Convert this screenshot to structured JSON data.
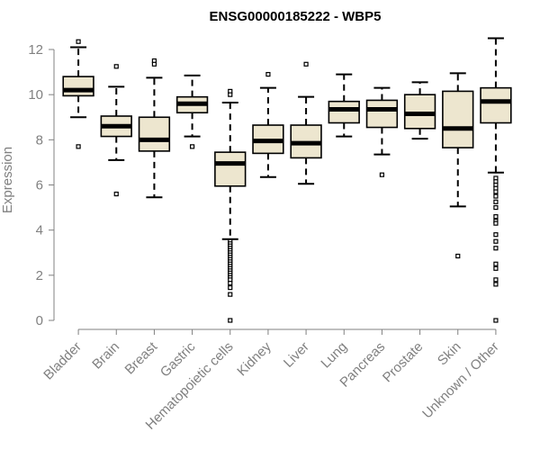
{
  "chart_data": {
    "type": "boxplot",
    "title": "ENSG00000185222 - WBP5",
    "xlabel": "",
    "ylabel": "Expression",
    "ylim": [
      0,
      12
    ],
    "yticks": [
      0,
      2,
      4,
      6,
      8,
      10,
      12
    ],
    "grid": false,
    "box_fill": "#ede6cf",
    "categories": [
      "Bladder",
      "Brain",
      "Breast",
      "Gastric",
      "Hematopoietic cells",
      "Kidney",
      "Liver",
      "Lung",
      "Pancreas",
      "Prostate",
      "Skin",
      "Unknown / Other"
    ],
    "boxes": [
      {
        "name": "Bladder",
        "whisker_low": 9.0,
        "q1": 9.95,
        "median": 10.2,
        "q3": 10.8,
        "whisker_high": 12.1,
        "outliers": [
          12.35,
          7.7
        ]
      },
      {
        "name": "Brain",
        "whisker_low": 7.1,
        "q1": 8.15,
        "median": 8.6,
        "q3": 9.05,
        "whisker_high": 10.35,
        "outliers": [
          11.25,
          5.6
        ]
      },
      {
        "name": "Breast",
        "whisker_low": 5.45,
        "q1": 7.5,
        "median": 8.0,
        "q3": 9.0,
        "whisker_high": 10.75,
        "outliers": [
          11.5,
          11.35
        ]
      },
      {
        "name": "Gastric",
        "whisker_low": 8.15,
        "q1": 9.2,
        "median": 9.6,
        "q3": 9.9,
        "whisker_high": 10.85,
        "outliers": [
          7.7
        ]
      },
      {
        "name": "Hematopoietic cells",
        "whisker_low": 3.6,
        "q1": 5.95,
        "median": 6.95,
        "q3": 7.45,
        "whisker_high": 9.65,
        "outliers": [
          10.15,
          10.0,
          3.5,
          3.4,
          3.3,
          3.2,
          3.1,
          3.0,
          2.9,
          2.8,
          2.7,
          2.6,
          2.5,
          2.4,
          2.3,
          2.2,
          2.1,
          2.0,
          1.9,
          1.8,
          1.65,
          1.45,
          1.15,
          0.0
        ]
      },
      {
        "name": "Kidney",
        "whisker_low": 6.35,
        "q1": 7.4,
        "median": 7.95,
        "q3": 8.65,
        "whisker_high": 10.3,
        "outliers": [
          10.9
        ]
      },
      {
        "name": "Liver",
        "whisker_low": 6.05,
        "q1": 7.2,
        "median": 7.85,
        "q3": 8.65,
        "whisker_high": 9.9,
        "outliers": [
          11.35
        ]
      },
      {
        "name": "Lung",
        "whisker_low": 8.15,
        "q1": 8.75,
        "median": 9.35,
        "q3": 9.7,
        "whisker_high": 10.9,
        "outliers": []
      },
      {
        "name": "Pancreas",
        "whisker_low": 7.35,
        "q1": 8.55,
        "median": 9.35,
        "q3": 9.75,
        "whisker_high": 10.3,
        "outliers": [
          6.45
        ]
      },
      {
        "name": "Prostate",
        "whisker_low": 8.05,
        "q1": 8.5,
        "median": 9.15,
        "q3": 10.0,
        "whisker_high": 10.55,
        "outliers": []
      },
      {
        "name": "Skin",
        "whisker_low": 5.05,
        "q1": 7.65,
        "median": 8.5,
        "q3": 10.15,
        "whisker_high": 10.95,
        "outliers": [
          2.85
        ]
      },
      {
        "name": "Unknown / Other",
        "whisker_low": 6.55,
        "q1": 8.75,
        "median": 9.7,
        "q3": 10.3,
        "whisker_high": 12.5,
        "outliers": [
          6.3,
          6.15,
          6.0,
          5.85,
          5.7,
          5.5,
          5.25,
          5.0,
          4.6,
          4.4,
          4.3,
          3.8,
          3.5,
          3.2,
          2.5,
          2.3,
          1.8,
          1.6,
          0.0
        ]
      }
    ]
  }
}
